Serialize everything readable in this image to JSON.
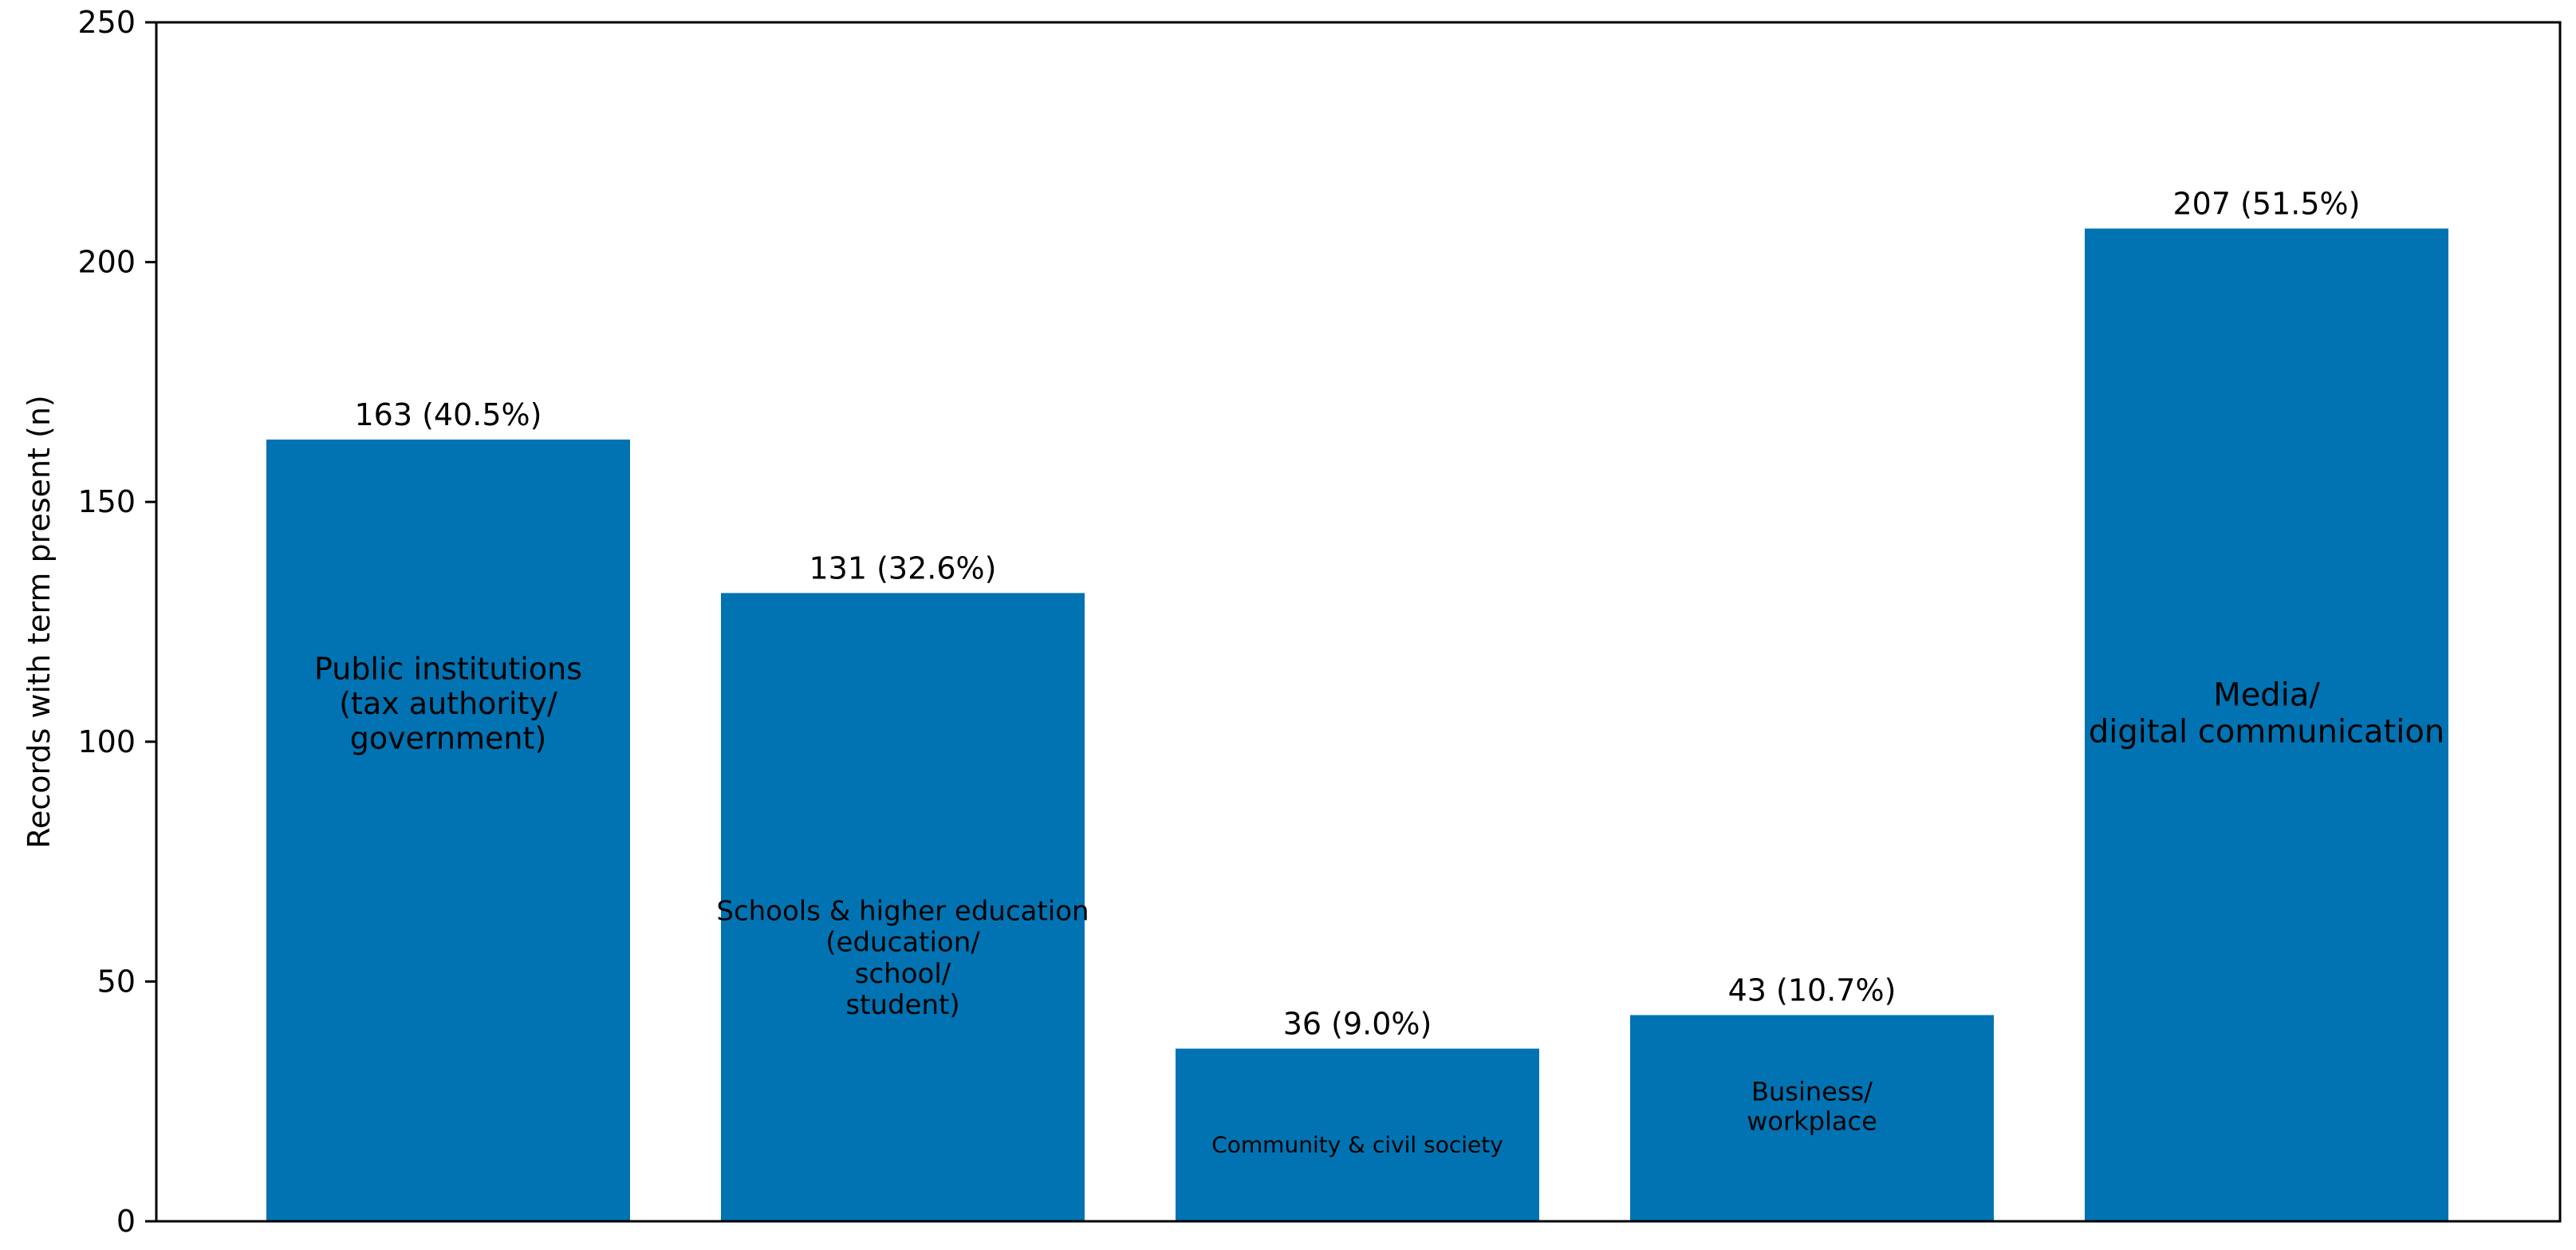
{
  "chart_data": {
    "type": "bar",
    "title": "",
    "xlabel": "",
    "ylabel": "Records with term present (n)",
    "ylim": [
      0,
      250
    ],
    "yticks": [
      0,
      50,
      100,
      150,
      200,
      250
    ],
    "grid": false,
    "legend": "none",
    "bar_color": "#0173b2",
    "categories": [
      "Public institutions\n(tax authority/\ngovernment)",
      "Schools & higher education\n(education/\nschool/\nstudent)",
      "Community & civil society",
      "Business/\nworkplace",
      "Media/\ndigital communication"
    ],
    "values": [
      163,
      131,
      36,
      43,
      207
    ],
    "value_labels": [
      "163 (40.5%)",
      "131 (32.6%)",
      "36 (9.0%)",
      "43 (10.7%)",
      "207 (51.5%)"
    ]
  }
}
